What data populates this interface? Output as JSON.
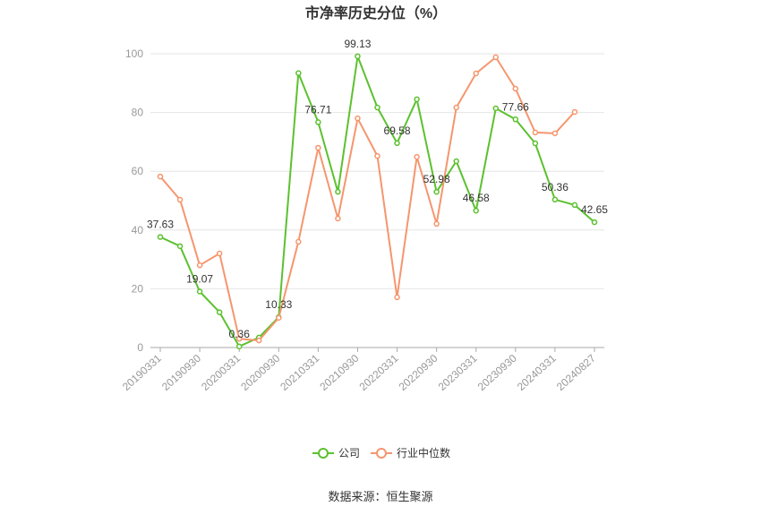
{
  "chart_data": {
    "type": "line",
    "title": "市净率历史分位（%）",
    "x_tick_labels": [
      "20190331",
      "20190930",
      "20200331",
      "20200930",
      "20210331",
      "20210930",
      "20220331",
      "20220930",
      "20230331",
      "20230930",
      "20240331",
      "20240827"
    ],
    "y_ticks": [
      0,
      20,
      40,
      60,
      80,
      100
    ],
    "ylim": [
      0,
      100
    ],
    "grid": true,
    "legend_position": "bottom",
    "series": [
      {
        "name": "公司",
        "color": "#5cc12f",
        "values": [
          37.63,
          34.5,
          19.07,
          12.0,
          0.36,
          3.4,
          10.33,
          93.4,
          76.71,
          53.0,
          99.13,
          81.7,
          69.58,
          84.5,
          52.98,
          63.4,
          46.58,
          81.4,
          77.66,
          69.5,
          50.36,
          48.5,
          42.65
        ]
      },
      {
        "name": "行业中位数",
        "color": "#f5966e",
        "values": [
          58.2,
          50.3,
          28.0,
          32.0,
          3.0,
          2.4,
          10.1,
          36.0,
          68.0,
          43.9,
          78.0,
          65.2,
          17.1,
          64.9,
          42.1,
          81.7,
          93.3,
          98.8,
          88.1,
          73.2,
          72.9,
          80.2,
          null
        ]
      }
    ]
  },
  "source": "数据来源：恒生聚源"
}
